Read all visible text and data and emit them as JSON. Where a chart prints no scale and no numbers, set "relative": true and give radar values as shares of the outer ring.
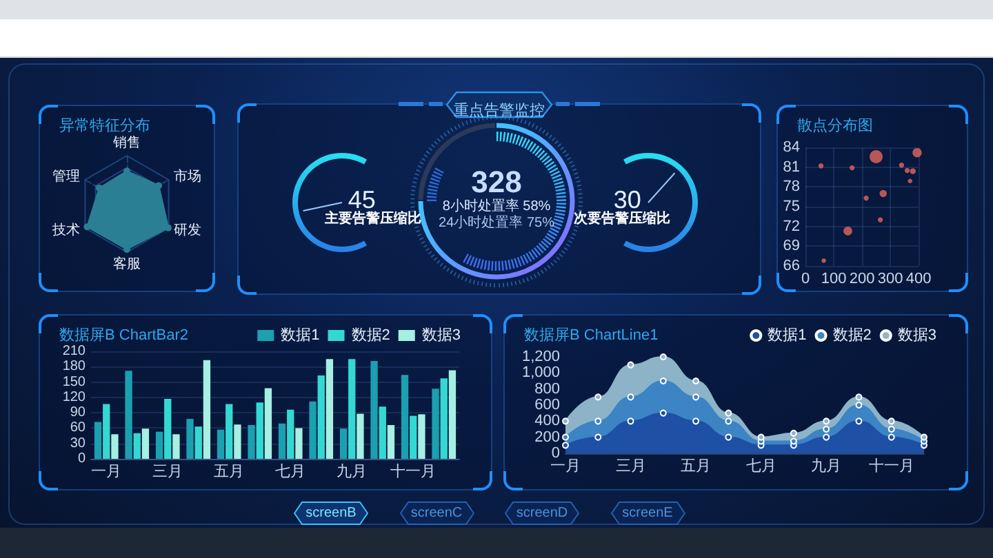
{
  "chart_data": [
    {
      "type": "radar",
      "title": "异常特征分布",
      "categories": [
        "销售",
        "市场",
        "研发",
        "客服",
        "技术",
        "管理"
      ],
      "relative": true,
      "grid": true,
      "marker": "circle",
      "series": [
        {
          "color": "#2b7f95",
          "values": [
            0.68,
            0.76,
            0.99,
            0.94,
            0.95,
            0.66
          ]
        }
      ]
    },
    {
      "type": "other",
      "title": "重点告警监控",
      "categories": [
        "主要告警压缩比",
        "次要告警压缩比"
      ],
      "values": [
        45,
        30
      ],
      "data_labels": true,
      "annotations": [
        "328",
        "8小时处置率 58%",
        "24小时处置率 75%"
      ]
    },
    {
      "type": "bubble",
      "title": "散点分布图",
      "x": [
        55,
        165,
        250,
        395,
        340,
        360,
        380,
        370,
        215,
        275,
        265,
        150,
        65
      ],
      "values": [
        81.2,
        80.9,
        82.6,
        83.2,
        81.3,
        80.5,
        80.4,
        78.9,
        76.3,
        77,
        73,
        71.3,
        66.8
      ],
      "sizes": [
        0.15,
        0.15,
        1,
        0.5,
        0.15,
        0.15,
        0.2,
        0.12,
        0.15,
        0.3,
        0.15,
        0.45,
        0.12
      ],
      "color": "#e5675e",
      "xlim": [
        0,
        400
      ],
      "xticks": [
        0,
        100,
        200,
        300,
        400
      ],
      "ylim": [
        66,
        84
      ],
      "yticks": [
        66,
        69,
        72,
        75,
        78,
        81,
        84
      ],
      "grid": true
    },
    {
      "type": "bar",
      "title": "数据屏B ChartBar2",
      "categories": [
        "一月",
        null,
        "三月",
        null,
        "五月",
        null,
        "七月",
        null,
        "九月",
        null,
        "十一月",
        null
      ],
      "series": [
        {
          "name": "数据1",
          "color": "#1ba0b0",
          "values": [
            72,
            172,
            53,
            78,
            57,
            66,
            69,
            112,
            59,
            191,
            164,
            137
          ]
        },
        {
          "name": "数据2",
          "color": "#34d8d2",
          "values": [
            107,
            50,
            117,
            63,
            107,
            110,
            96,
            163,
            195,
            102,
            84,
            157
          ]
        },
        {
          "name": "数据3",
          "color": "#a6efe3",
          "values": [
            48,
            59,
            48,
            193,
            67,
            138,
            60,
            195,
            88,
            66,
            87,
            173
          ]
        }
      ],
      "ylim": [
        0,
        210
      ],
      "yticks": [
        0,
        30,
        60,
        90,
        120,
        150,
        180,
        210
      ],
      "grid": "y",
      "legend": "top right"
    },
    {
      "type": "area",
      "title": "数据屏B ChartLine1",
      "categories": [
        "一月",
        null,
        "三月",
        null,
        "五月",
        null,
        "七月",
        null,
        "九月",
        null,
        "十一月",
        null
      ],
      "stacked": true,
      "marker": "circle",
      "series": [
        {
          "name": "数据1",
          "color": "#1e50a5",
          "values": [
            100,
            200,
            400,
            500,
            400,
            200,
            100,
            100,
            200,
            400,
            200,
            100
          ]
        },
        {
          "name": "数据2",
          "color": "#3c84c4",
          "values": [
            100,
            200,
            300,
            400,
            300,
            200,
            50,
            50,
            100,
            200,
            100,
            50
          ]
        },
        {
          "name": "数据3",
          "color": "#8db3c9",
          "values": [
            200,
            300,
            400,
            300,
            200,
            100,
            50,
            100,
            100,
            100,
            100,
            50
          ]
        }
      ],
      "ylim": [
        0,
        1200
      ],
      "yticks": [
        0,
        200,
        400,
        600,
        800,
        {
          "value": 1000,
          "label": "1,000"
        },
        {
          "value": 1200,
          "label": "1,200"
        }
      ],
      "legend": "top right"
    },
    {
      "type": "other",
      "annotations": [
        "screenB",
        "screenC",
        "screenD",
        "screenE"
      ]
    }
  ]
}
